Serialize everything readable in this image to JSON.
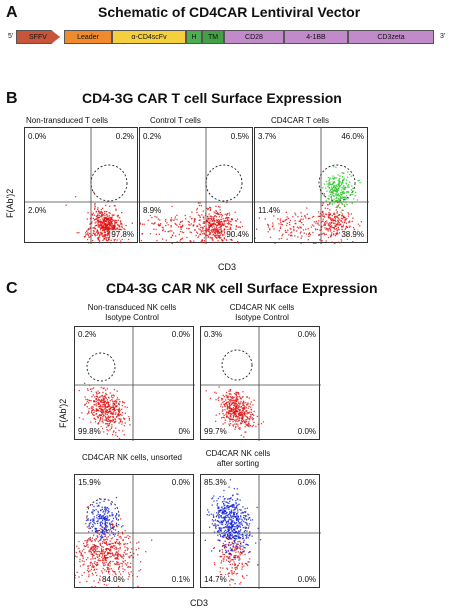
{
  "panel_a": {
    "letter": "A",
    "title": "Schematic of CD4CAR Lentiviral Vector",
    "five_prime": "5'",
    "three_prime": "3'",
    "segments": [
      {
        "label": "SFFV",
        "color": "#c8553a"
      },
      {
        "label": "Leader",
        "color": "#f08a2e"
      },
      {
        "label": "α-CD4scFv",
        "color": "#f4d03f"
      },
      {
        "label": "H",
        "color": "#4caf50"
      },
      {
        "label": "TM",
        "color": "#43a047"
      },
      {
        "label": "CD28",
        "color": "#c18ac9"
      },
      {
        "label": "4-1BB",
        "color": "#c18ac9"
      },
      {
        "label": "CD3zeta",
        "color": "#c18ac9"
      }
    ]
  },
  "panel_b": {
    "letter": "B",
    "title": "CD4-3G CAR T cell Surface Expression",
    "y_axis": "F(Ab')2",
    "x_axis": "CD3",
    "plots": [
      {
        "label": "Non-transduced T cells",
        "ul": "0.0%",
        "ur": "0.2%",
        "ll": "2.0%",
        "lr": "97.8%"
      },
      {
        "label": "Control T cells",
        "ul": "0.2%",
        "ur": "0.5%",
        "ll": "8.9%",
        "lr": "90.4%"
      },
      {
        "label": "CD4CAR T cells",
        "ul": "3.7%",
        "ur": "46.0%",
        "ll": "11.4%",
        "lr": "38.9%"
      }
    ]
  },
  "panel_c": {
    "letter": "C",
    "title": "CD4-3G CAR NK cell Surface Expression",
    "y_axis": "F(Ab')2",
    "x_axis": "CD3",
    "plots": [
      {
        "label1": "Non-transduced NK cells",
        "label2": "Isotype Control",
        "ul": "0.2%",
        "ur": "0.0%",
        "ll": "99.8%",
        "lr": "0%"
      },
      {
        "label1": "CD4CAR NK cells",
        "label2": "Isotype Control",
        "ul": "0.3%",
        "ur": "0.0%",
        "ll": "99.7%",
        "lr": "0.0%"
      },
      {
        "label1": "CD4CAR NK cells, unsorted",
        "label2": "",
        "ul": "15.9%",
        "ur": "0.0%",
        "ll": "84.0%",
        "lr": "0.1%"
      },
      {
        "label1": "CD4CAR NK cells",
        "label2": "after sorting",
        "ul": "85.3%",
        "ur": "0.0%",
        "ll": "14.7%",
        "lr": "0.0%"
      }
    ]
  }
}
